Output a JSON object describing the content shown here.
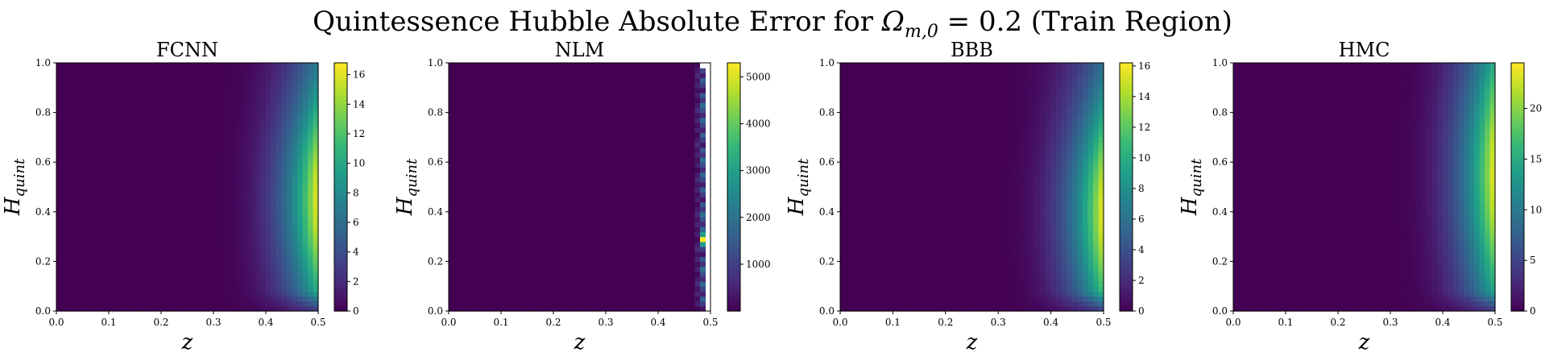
{
  "figure": {
    "title": "Quintessence Hubble Absolute Error for Ωm,0 = 0.2 (Train Region)",
    "title_main": "Quintessence Hubble Absolute Error for ",
    "title_symbol": "Ω",
    "title_subscript": "m,0",
    "title_rest": " = 0.2 (Train Region)"
  },
  "colormap": "viridis",
  "colormap_stops": [
    "#440154",
    "#482878",
    "#3e4a89",
    "#31688e",
    "#26828e",
    "#1f9e89",
    "#35b779",
    "#6ece58",
    "#b5de2b",
    "#fde725"
  ],
  "chart_data": [
    {
      "type": "heatmap",
      "title": "FCNN",
      "xlabel": "z",
      "ylabel": "H_quint",
      "ylabel_main": "H",
      "ylabel_sub": "quint",
      "xlim": [
        0.0,
        0.5
      ],
      "ylim": [
        0.0,
        1.0
      ],
      "x_ticks": [
        "0.0",
        "0.1",
        "0.2",
        "0.3",
        "0.4",
        "0.5"
      ],
      "y_ticks": [
        "0.0",
        "0.2",
        "0.4",
        "0.6",
        "0.8",
        "1.0"
      ],
      "colorbar": {
        "min": 0,
        "max": 16.8,
        "ticks": [
          0,
          2,
          4,
          6,
          8,
          10,
          12,
          14,
          16
        ]
      },
      "peak_error": 16.8,
      "peak_location": {
        "z": 0.5,
        "H_quint": 0.45
      },
      "pattern": "smooth"
    },
    {
      "type": "heatmap",
      "title": "NLM",
      "xlabel": "z",
      "ylabel": "H_quint",
      "ylabel_main": "H",
      "ylabel_sub": "quint",
      "xlim": [
        0.0,
        0.5
      ],
      "ylim": [
        0.0,
        1.0
      ],
      "x_ticks": [
        "0.0",
        "0.1",
        "0.2",
        "0.3",
        "0.4",
        "0.5"
      ],
      "y_ticks": [
        "0.0",
        "0.2",
        "0.4",
        "0.6",
        "0.8",
        "1.0"
      ],
      "colorbar": {
        "min": 0,
        "max": 5300,
        "ticks": [
          1000,
          2000,
          3000,
          4000,
          5000
        ]
      },
      "peak_error": 5300,
      "peak_location": {
        "z": 0.48,
        "H_quint": 0.28
      },
      "pattern": "edge-columns"
    },
    {
      "type": "heatmap",
      "title": "BBB",
      "xlabel": "z",
      "ylabel": "H_quint",
      "ylabel_main": "H",
      "ylabel_sub": "quint",
      "xlim": [
        0.0,
        0.5
      ],
      "ylim": [
        0.0,
        1.0
      ],
      "x_ticks": [
        "0.0",
        "0.1",
        "0.2",
        "0.3",
        "0.4",
        "0.5"
      ],
      "y_ticks": [
        "0.0",
        "0.2",
        "0.4",
        "0.6",
        "0.8",
        "1.0"
      ],
      "colorbar": {
        "min": 0,
        "max": 16.2,
        "ticks": [
          0,
          2,
          4,
          6,
          8,
          10,
          12,
          14,
          16
        ]
      },
      "peak_error": 16.2,
      "peak_location": {
        "z": 0.5,
        "H_quint": 0.4
      },
      "pattern": "smooth"
    },
    {
      "type": "heatmap",
      "title": "HMC",
      "xlabel": "z",
      "ylabel": "H_quint",
      "ylabel_main": "H",
      "ylabel_sub": "quint",
      "xlim": [
        0.0,
        0.5
      ],
      "ylim": [
        0.0,
        1.0
      ],
      "x_ticks": [
        "0.0",
        "0.1",
        "0.2",
        "0.3",
        "0.4",
        "0.5"
      ],
      "y_ticks": [
        "0.0",
        "0.2",
        "0.4",
        "0.6",
        "0.8",
        "1.0"
      ],
      "colorbar": {
        "min": 0,
        "max": 24.5,
        "ticks": [
          0,
          5,
          10,
          15,
          20
        ]
      },
      "peak_error": 24.5,
      "peak_location": {
        "z": 0.5,
        "H_quint": 0.55
      },
      "pattern": "smooth"
    }
  ]
}
